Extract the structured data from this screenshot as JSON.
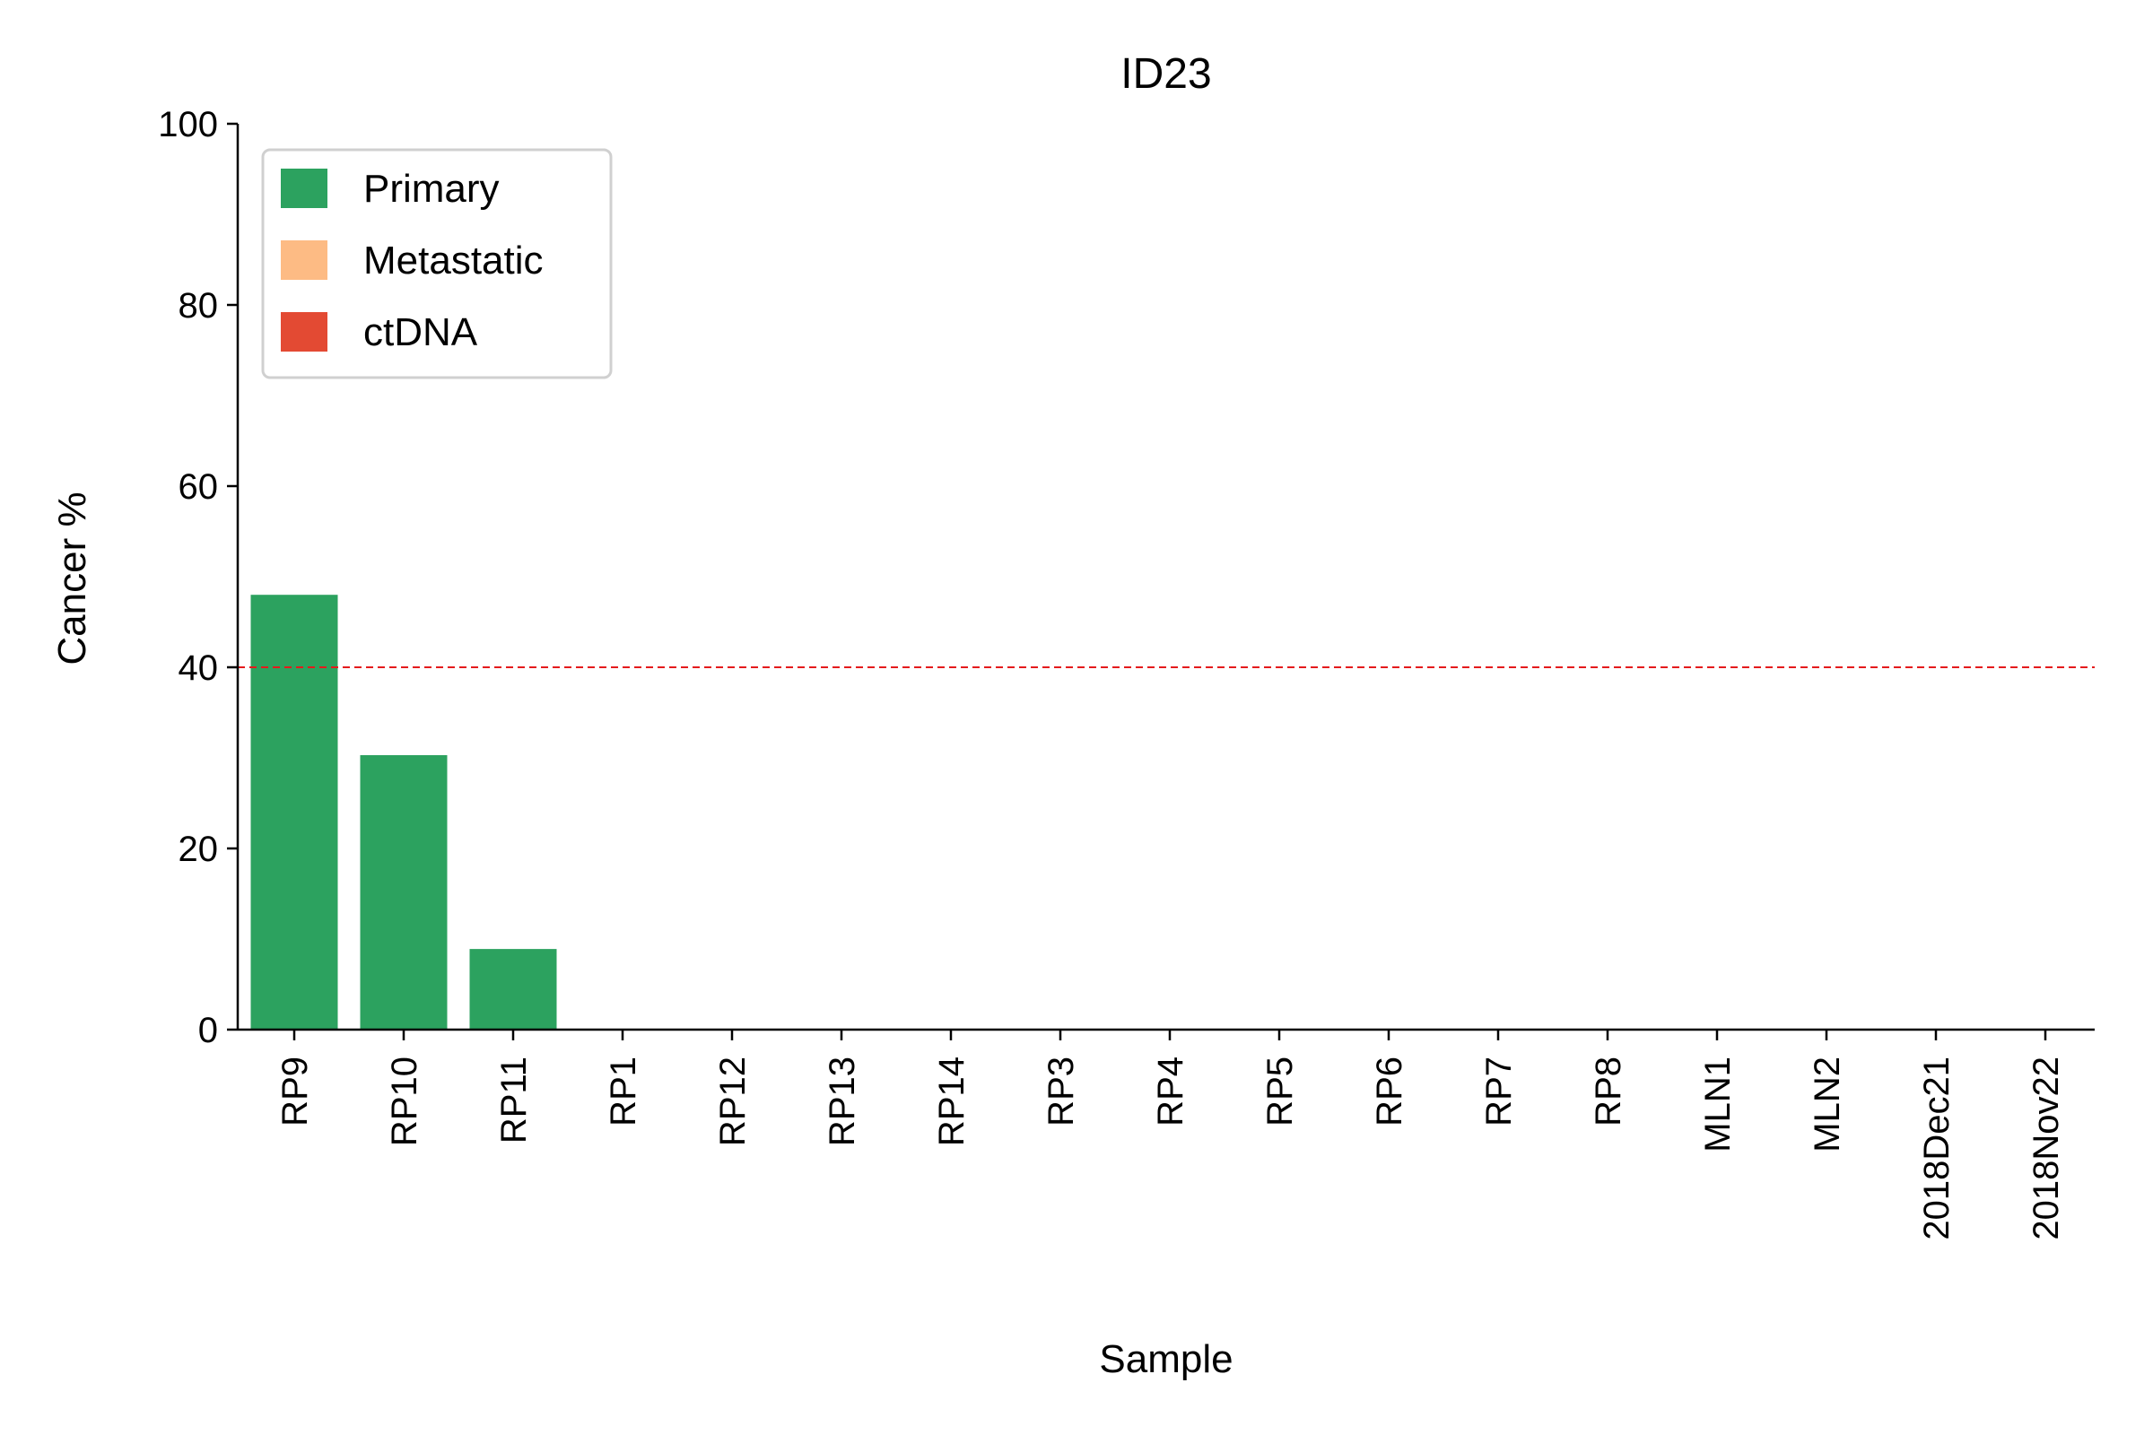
{
  "chart_data": {
    "type": "bar",
    "title": "ID23",
    "xlabel": "Sample",
    "ylabel": "Cancer %",
    "ylim": [
      0,
      100
    ],
    "yticks": [
      0,
      20,
      40,
      60,
      80,
      100
    ],
    "categories": [
      "RP9",
      "RP10",
      "RP11",
      "RP1",
      "RP12",
      "RP13",
      "RP14",
      "RP3",
      "RP4",
      "RP5",
      "RP6",
      "RP7",
      "RP8",
      "MLN1",
      "MLN2",
      "2018Dec21",
      "2018Nov22"
    ],
    "series": [
      {
        "name": "Primary",
        "color": "#2ca25f",
        "values": [
          48,
          30.3,
          8.9,
          0,
          0,
          0,
          0,
          0,
          0,
          0,
          0,
          0,
          0,
          0,
          0,
          0,
          0
        ]
      },
      {
        "name": "Metastatic",
        "color": "#fdbb84",
        "values": [
          0,
          0,
          0,
          0,
          0,
          0,
          0,
          0,
          0,
          0,
          0,
          0,
          0,
          0,
          0,
          0,
          0
        ]
      },
      {
        "name": "ctDNA",
        "color": "#e34a33",
        "values": [
          0,
          0,
          0,
          0,
          0,
          0,
          0,
          0,
          0,
          0,
          0,
          0,
          0,
          0,
          0,
          0,
          0
        ]
      }
    ],
    "threshold": {
      "value": 40,
      "color": "#e41a1c",
      "style": "dashed"
    },
    "legend": {
      "placement": "top-left",
      "entries": [
        "Primary",
        "Metastatic",
        "ctDNA"
      ]
    },
    "grid": false
  }
}
